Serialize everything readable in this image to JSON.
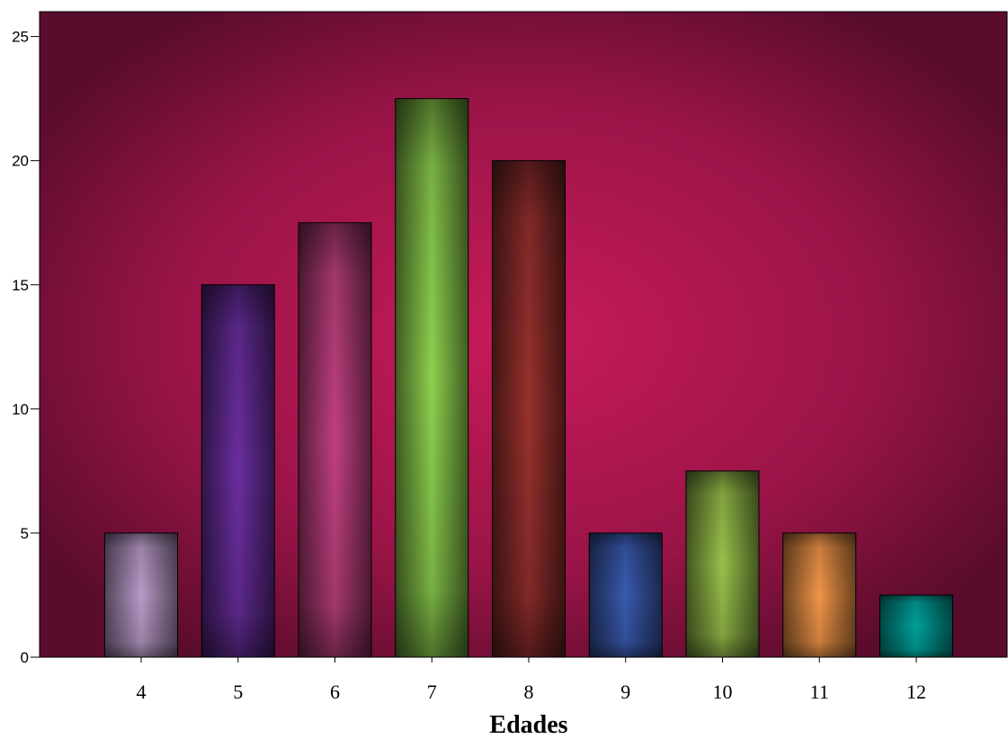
{
  "chart_data": {
    "type": "bar",
    "title": "",
    "xlabel": "Edades",
    "ylabel": "",
    "categories": [
      "4",
      "5",
      "6",
      "7",
      "8",
      "9",
      "10",
      "11",
      "12"
    ],
    "values": [
      5,
      15,
      17.5,
      22.5,
      20,
      5,
      7.5,
      5,
      2.5
    ],
    "ylim": [
      0,
      26
    ],
    "yticks": [
      "0",
      "5",
      "10",
      "15",
      "20",
      "25"
    ],
    "grid": false,
    "legend": "none",
    "background_color": "#8a1040",
    "bar_colors": [
      "#b89ac8",
      "#6a2ea0",
      "#c04080",
      "#8ed04e",
      "#98302e",
      "#3a5ab0",
      "#98c04a",
      "#f09448",
      "#00a09a"
    ]
  }
}
